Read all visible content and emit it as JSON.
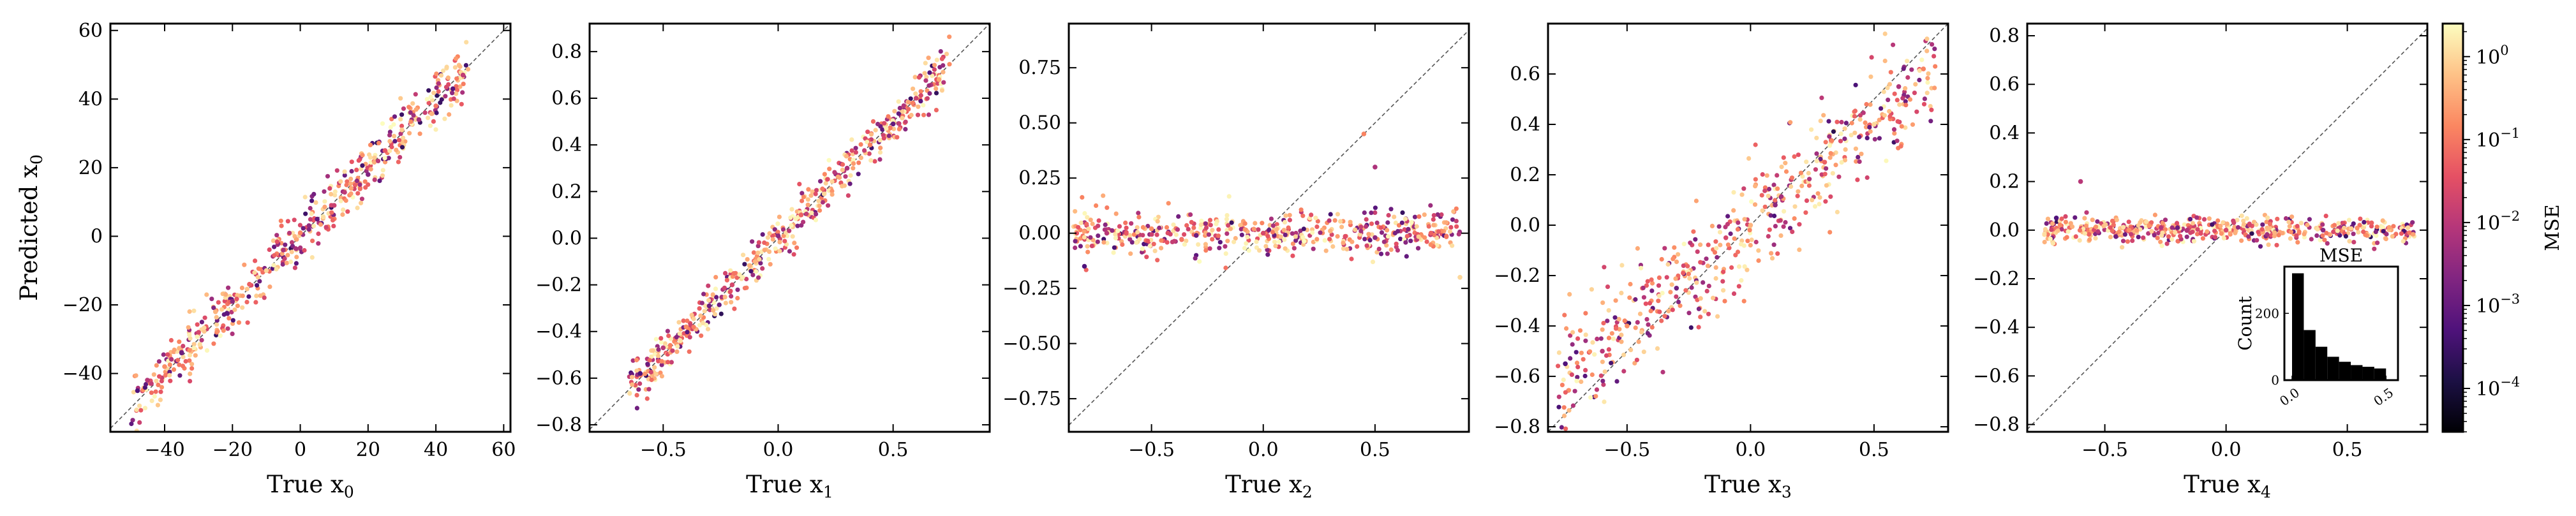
{
  "figure": {
    "point_colormap": "magma",
    "colormap_stops": [
      "#000004",
      "#1c1044",
      "#4f127b",
      "#812581",
      "#b5367a",
      "#e55064",
      "#fb8761",
      "#fec287",
      "#fcfdbf"
    ]
  },
  "colorbar": {
    "label": "MSE",
    "scale": "log",
    "range": [
      3e-05,
      2.5
    ],
    "ticks": [
      {
        "value": 0.0001,
        "base": "10",
        "exp": "−4"
      },
      {
        "value": 0.001,
        "base": "10",
        "exp": "−3"
      },
      {
        "value": 0.01,
        "base": "10",
        "exp": "−2"
      },
      {
        "value": 0.1,
        "base": "10",
        "exp": "−1"
      },
      {
        "value": 1,
        "base": "10",
        "exp": "0"
      }
    ]
  },
  "inset": {
    "title": "MSE",
    "ylabel": "Count",
    "xticks": [
      "0.0",
      "0.5"
    ],
    "yticks": [
      "0",
      "200"
    ],
    "bar_color": "#000000"
  },
  "chart_data": [
    {
      "type": "scatter",
      "xlabel": "True x",
      "xlabel_sub": "0",
      "ylabel": "Predicted x",
      "ylabel_sub": "0",
      "xlim": [
        -56,
        62
      ],
      "ylim": [
        -57,
        62
      ],
      "xticks": [
        -40,
        -20,
        0,
        20,
        40,
        60
      ],
      "xtick_labels": [
        "−40",
        "−20",
        "0",
        "20",
        "40",
        "60"
      ],
      "yticks": [
        -40,
        -20,
        0,
        20,
        40,
        60
      ],
      "ytick_labels": [
        "−40",
        "−20",
        "0",
        "20",
        "40",
        "60"
      ],
      "diagonal": true,
      "trend": {
        "slope": 1.0,
        "x_range": [
          -50,
          50
        ],
        "noise": 4.0
      },
      "points": [
        [
          -48,
          -45
        ],
        [
          -45,
          -42
        ],
        [
          -40,
          -38
        ],
        [
          -35,
          -34
        ],
        [
          -30,
          -28
        ],
        [
          -25,
          -22
        ],
        [
          -20,
          -19
        ],
        [
          -15,
          -14
        ],
        [
          -10,
          -10
        ],
        [
          -5,
          -4
        ],
        [
          0,
          1
        ],
        [
          5,
          5
        ],
        [
          10,
          9
        ],
        [
          15,
          14
        ],
        [
          20,
          18
        ],
        [
          25,
          25
        ],
        [
          30,
          31
        ],
        [
          35,
          34
        ],
        [
          40,
          38
        ],
        [
          45,
          43
        ],
        [
          48,
          47
        ]
      ]
    },
    {
      "type": "scatter",
      "xlabel": "True x",
      "xlabel_sub": "1",
      "xlim": [
        -0.82,
        0.92
      ],
      "ylim": [
        -0.83,
        0.92
      ],
      "xticks": [
        -0.5,
        0,
        0.5
      ],
      "xtick_labels": [
        "−0.5",
        "0.0",
        "0.5"
      ],
      "yticks": [
        -0.8,
        -0.6,
        -0.4,
        -0.2,
        0,
        0.2,
        0.4,
        0.6,
        0.8
      ],
      "ytick_labels": [
        "−0.8",
        "−0.6",
        "−0.4",
        "−0.2",
        "0.0",
        "0.2",
        "0.4",
        "0.6",
        "0.8"
      ],
      "diagonal": true,
      "trend": {
        "slope": 1.0,
        "x_range": [
          -0.65,
          0.75
        ],
        "noise": 0.05
      },
      "points": [
        [
          -0.6,
          -0.58
        ],
        [
          -0.5,
          -0.47
        ],
        [
          -0.4,
          -0.38
        ],
        [
          -0.3,
          -0.29
        ],
        [
          -0.2,
          -0.2
        ],
        [
          -0.1,
          -0.1
        ],
        [
          0,
          0.01
        ],
        [
          0.1,
          0.1
        ],
        [
          0.2,
          0.19
        ],
        [
          0.3,
          0.3
        ],
        [
          0.4,
          0.4
        ],
        [
          0.5,
          0.49
        ],
        [
          0.6,
          0.6
        ],
        [
          0.7,
          0.68
        ]
      ]
    },
    {
      "type": "scatter",
      "xlabel": "True x",
      "xlabel_sub": "2",
      "xlim": [
        -0.87,
        0.92
      ],
      "ylim": [
        -0.9,
        0.95
      ],
      "xticks": [
        -0.5,
        0,
        0.5
      ],
      "xtick_labels": [
        "−0.5",
        "0.0",
        "0.5"
      ],
      "yticks": [
        -0.75,
        -0.5,
        -0.25,
        0,
        0.25,
        0.5,
        0.75
      ],
      "ytick_labels": [
        "−0.75",
        "−0.50",
        "−0.25",
        "0.00",
        "0.25",
        "0.50",
        "0.75"
      ],
      "diagonal": true,
      "trend": {
        "slope": 0.0,
        "x_range": [
          -0.85,
          0.88
        ],
        "noise": 0.05
      },
      "points": [
        [
          -0.8,
          -0.15
        ],
        [
          -0.7,
          0.0
        ],
        [
          -0.5,
          0.02
        ],
        [
          -0.3,
          -0.01
        ],
        [
          0,
          0.0
        ],
        [
          0.3,
          0.01
        ],
        [
          0.5,
          -0.02
        ],
        [
          0.75,
          0.0
        ],
        [
          0.88,
          -0.2
        ],
        [
          0.5,
          0.3
        ],
        [
          0.45,
          0.45
        ]
      ]
    },
    {
      "type": "scatter",
      "xlabel": "True x",
      "xlabel_sub": "3",
      "xlim": [
        -0.82,
        0.8
      ],
      "ylim": [
        -0.82,
        0.8
      ],
      "xticks": [
        -0.5,
        0,
        0.5
      ],
      "xtick_labels": [
        "−0.5",
        "0.0",
        "0.5"
      ],
      "yticks": [
        -0.8,
        -0.6,
        -0.4,
        -0.2,
        0,
        0.2,
        0.4,
        0.6
      ],
      "ytick_labels": [
        "−0.8",
        "−0.6",
        "−0.4",
        "−0.2",
        "0.0",
        "0.2",
        "0.4",
        "0.6"
      ],
      "diagonal": true,
      "trend": {
        "slope": 0.82,
        "x_range": [
          -0.78,
          0.75
        ],
        "noise": 0.11
      },
      "points": [
        [
          -0.75,
          -0.55
        ],
        [
          -0.6,
          -0.5
        ],
        [
          -0.5,
          -0.4
        ],
        [
          -0.3,
          -0.25
        ],
        [
          -0.1,
          -0.05
        ],
        [
          0,
          0.0
        ],
        [
          0.1,
          0.08
        ],
        [
          0.3,
          0.25
        ],
        [
          0.5,
          0.4
        ],
        [
          0.6,
          0.55
        ],
        [
          0.7,
          0.62
        ]
      ]
    },
    {
      "type": "scatter",
      "xlabel": "True x",
      "xlabel_sub": "4",
      "xlim": [
        -0.82,
        0.83
      ],
      "ylim": [
        -0.83,
        0.85
      ],
      "xticks": [
        -0.5,
        0,
        0.5
      ],
      "xtick_labels": [
        "−0.5",
        "0.0",
        "0.5"
      ],
      "yticks": [
        -0.8,
        -0.6,
        -0.4,
        -0.2,
        0,
        0.2,
        0.4,
        0.6,
        0.8
      ],
      "ytick_labels": [
        "−0.8",
        "−0.6",
        "−0.4",
        "−0.2",
        "0.0",
        "0.2",
        "0.4",
        "0.6",
        "0.8"
      ],
      "diagonal": true,
      "trend": {
        "slope": 0.0,
        "x_range": [
          -0.75,
          0.78
        ],
        "noise": 0.025
      },
      "points": [
        [
          -0.7,
          0.05
        ],
        [
          -0.6,
          0.2
        ],
        [
          -0.4,
          0.0
        ],
        [
          -0.2,
          0.01
        ],
        [
          0,
          0.0
        ],
        [
          0.2,
          -0.01
        ],
        [
          0.4,
          0.0
        ],
        [
          0.6,
          0.03
        ],
        [
          0.75,
          0.01
        ]
      ],
      "inset_histogram": {
        "type": "bar",
        "bin_edges": [
          0.0,
          0.0625,
          0.125,
          0.1875,
          0.25,
          0.3125,
          0.375,
          0.4375,
          0.5
        ],
        "counts": [
          320,
          150,
          100,
          70,
          55,
          45,
          40,
          35
        ]
      }
    }
  ]
}
